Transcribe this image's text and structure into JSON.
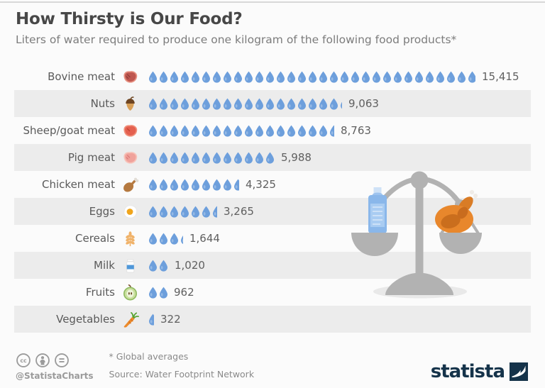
{
  "chart_data": {
    "type": "bar",
    "subtype": "pictogram",
    "title": "How Thirsty is Our Food?",
    "subtitle": "Liters of water required to produce one kilogram of the following food products*",
    "unit": "liters of water per kilogram",
    "liters_per_drop": 500,
    "grid": false,
    "legend_position": "none",
    "categories": [
      "Bovine meat",
      "Nuts",
      "Sheep/goat meat",
      "Pig meat",
      "Chicken meat",
      "Eggs",
      "Cereals",
      "Milk",
      "Fruits",
      "Vegetables"
    ],
    "values": [
      15415,
      9063,
      8763,
      5988,
      4325,
      3265,
      1644,
      1020,
      962,
      322
    ],
    "value_labels": [
      "15,415",
      "9,063",
      "8,763",
      "5,988",
      "4,325",
      "3,265",
      "1,644",
      "1,020",
      "962",
      "322"
    ],
    "icons": [
      "bovine-meat",
      "nuts",
      "sheep-goat-meat",
      "pig-meat",
      "chicken-meat",
      "eggs",
      "cereals",
      "milk",
      "fruits",
      "vegetables"
    ]
  },
  "illustration": {
    "name": "balance-scale",
    "left_pan": "water-bottle",
    "right_pan": "roast-chicken"
  },
  "footer": {
    "handle": "@StatistaCharts",
    "footnote": "* Global averages",
    "source": "Source: Water Footprint Network",
    "brand": "statista",
    "license_icons": [
      "cc-icon",
      "cc-by-person-icon",
      "cc-nd-equals-icon"
    ]
  },
  "colors": {
    "drop_blue": "#6d9fdc",
    "row_alt_gray": "#ececec",
    "scale_gray": "#b2b2b2",
    "brand_navy": "#15334a",
    "title_gray": "#474747"
  }
}
